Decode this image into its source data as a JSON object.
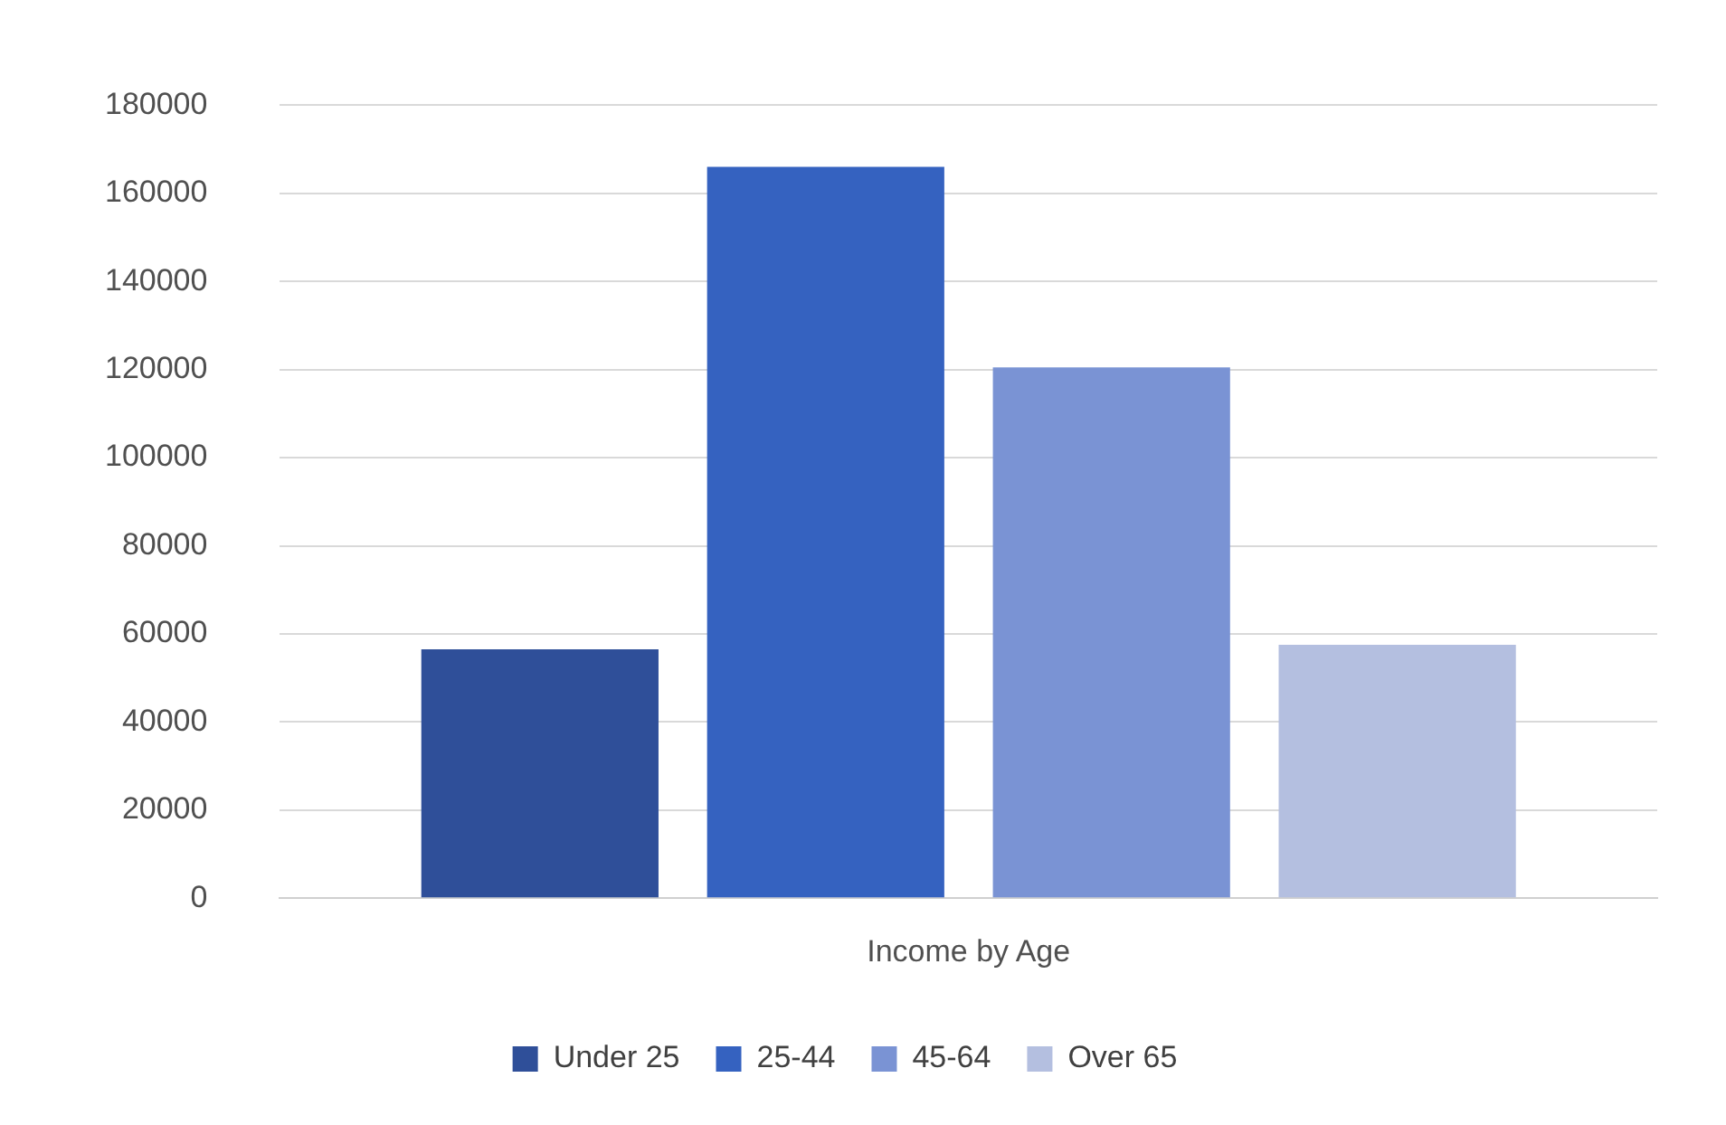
{
  "chart_data": {
    "type": "bar",
    "categories": [
      "Income by Age"
    ],
    "series": [
      {
        "name": "Under 25",
        "color": "#2f4f99",
        "values": [
          56500
        ]
      },
      {
        "name": "25-44",
        "color": "#3562c0",
        "values": [
          166000
        ]
      },
      {
        "name": "45-64",
        "color": "#7a93d4",
        "values": [
          120500
        ]
      },
      {
        "name": "Over 65",
        "color": "#b4bfe0",
        "values": [
          57500
        ]
      }
    ],
    "ylim": [
      0,
      180000
    ],
    "yticks": [
      0,
      20000,
      40000,
      60000,
      80000,
      100000,
      120000,
      140000,
      160000,
      180000
    ],
    "grid": "y",
    "legend": "bottom"
  }
}
